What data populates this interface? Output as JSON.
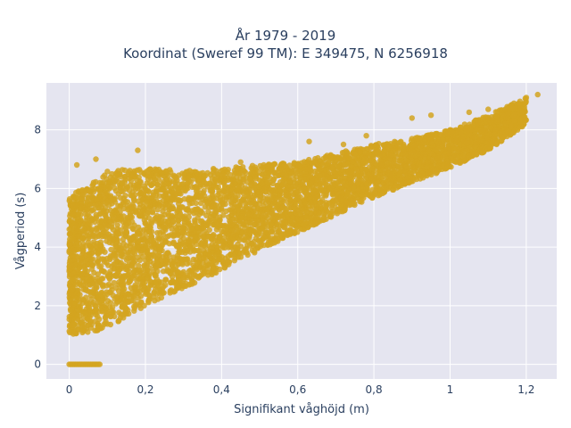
{
  "colors": {
    "background": "#e5e5f0",
    "grid": "#ffffff",
    "points": "#D4A520",
    "text": "#2a3f5f"
  },
  "chart_data": {
    "type": "scatter",
    "title_lines": [
      "År 1979 - 2019",
      "Koordinat (Sweref 99 TM): E 349475, N 6256918"
    ],
    "xlabel": "Signifikant våghöjd (m)",
    "ylabel": "Vågperiod (s)",
    "xlim": [
      -0.06,
      1.28
    ],
    "ylim": [
      -0.5,
      9.6
    ],
    "xticks": [
      0,
      0.2,
      0.4,
      0.6,
      0.8,
      1,
      1.2
    ],
    "xtick_labels": [
      "0",
      "0,2",
      "0,4",
      "0,6",
      "0,8",
      "1",
      "1,2"
    ],
    "yticks": [
      0,
      2,
      4,
      6,
      8
    ],
    "ytick_labels": [
      "0",
      "2",
      "4",
      "6",
      "8"
    ],
    "grid": true,
    "legend": "none",
    "series": [
      {
        "envelope": {
          "lower": [
            [
              0.0,
              1.0
            ],
            [
              0.1,
              1.2
            ],
            [
              0.2,
              2.0
            ],
            [
              0.3,
              2.6
            ],
            [
              0.4,
              3.2
            ],
            [
              0.5,
              3.9
            ],
            [
              0.6,
              4.5
            ],
            [
              0.7,
              5.1
            ],
            [
              0.8,
              5.7
            ],
            [
              0.9,
              6.2
            ],
            [
              1.0,
              6.7
            ],
            [
              1.1,
              7.3
            ],
            [
              1.2,
              8.2
            ]
          ],
          "upper": [
            [
              0.0,
              5.7
            ],
            [
              0.1,
              6.6
            ],
            [
              0.2,
              6.7
            ],
            [
              0.3,
              6.6
            ],
            [
              0.4,
              6.7
            ],
            [
              0.5,
              6.8
            ],
            [
              0.6,
              6.9
            ],
            [
              0.7,
              7.2
            ],
            [
              0.8,
              7.5
            ],
            [
              0.9,
              7.7
            ],
            [
              1.0,
              8.0
            ],
            [
              1.1,
              8.5
            ],
            [
              1.2,
              9.1
            ]
          ]
        },
        "zero_segment": {
          "x": [
            0.0,
            0.08
          ],
          "y": 0
        },
        "outliers": [
          [
            0.02,
            6.8
          ],
          [
            0.07,
            7.0
          ],
          [
            0.18,
            7.3
          ],
          [
            0.45,
            6.9
          ],
          [
            0.63,
            7.6
          ],
          [
            0.72,
            7.5
          ],
          [
            0.78,
            7.8
          ],
          [
            0.84,
            7.4
          ],
          [
            0.9,
            8.4
          ],
          [
            0.95,
            8.5
          ],
          [
            1.05,
            8.6
          ],
          [
            1.1,
            8.7
          ],
          [
            1.18,
            8.9
          ],
          [
            1.2,
            9.1
          ],
          [
            1.23,
            9.2
          ]
        ]
      }
    ]
  }
}
